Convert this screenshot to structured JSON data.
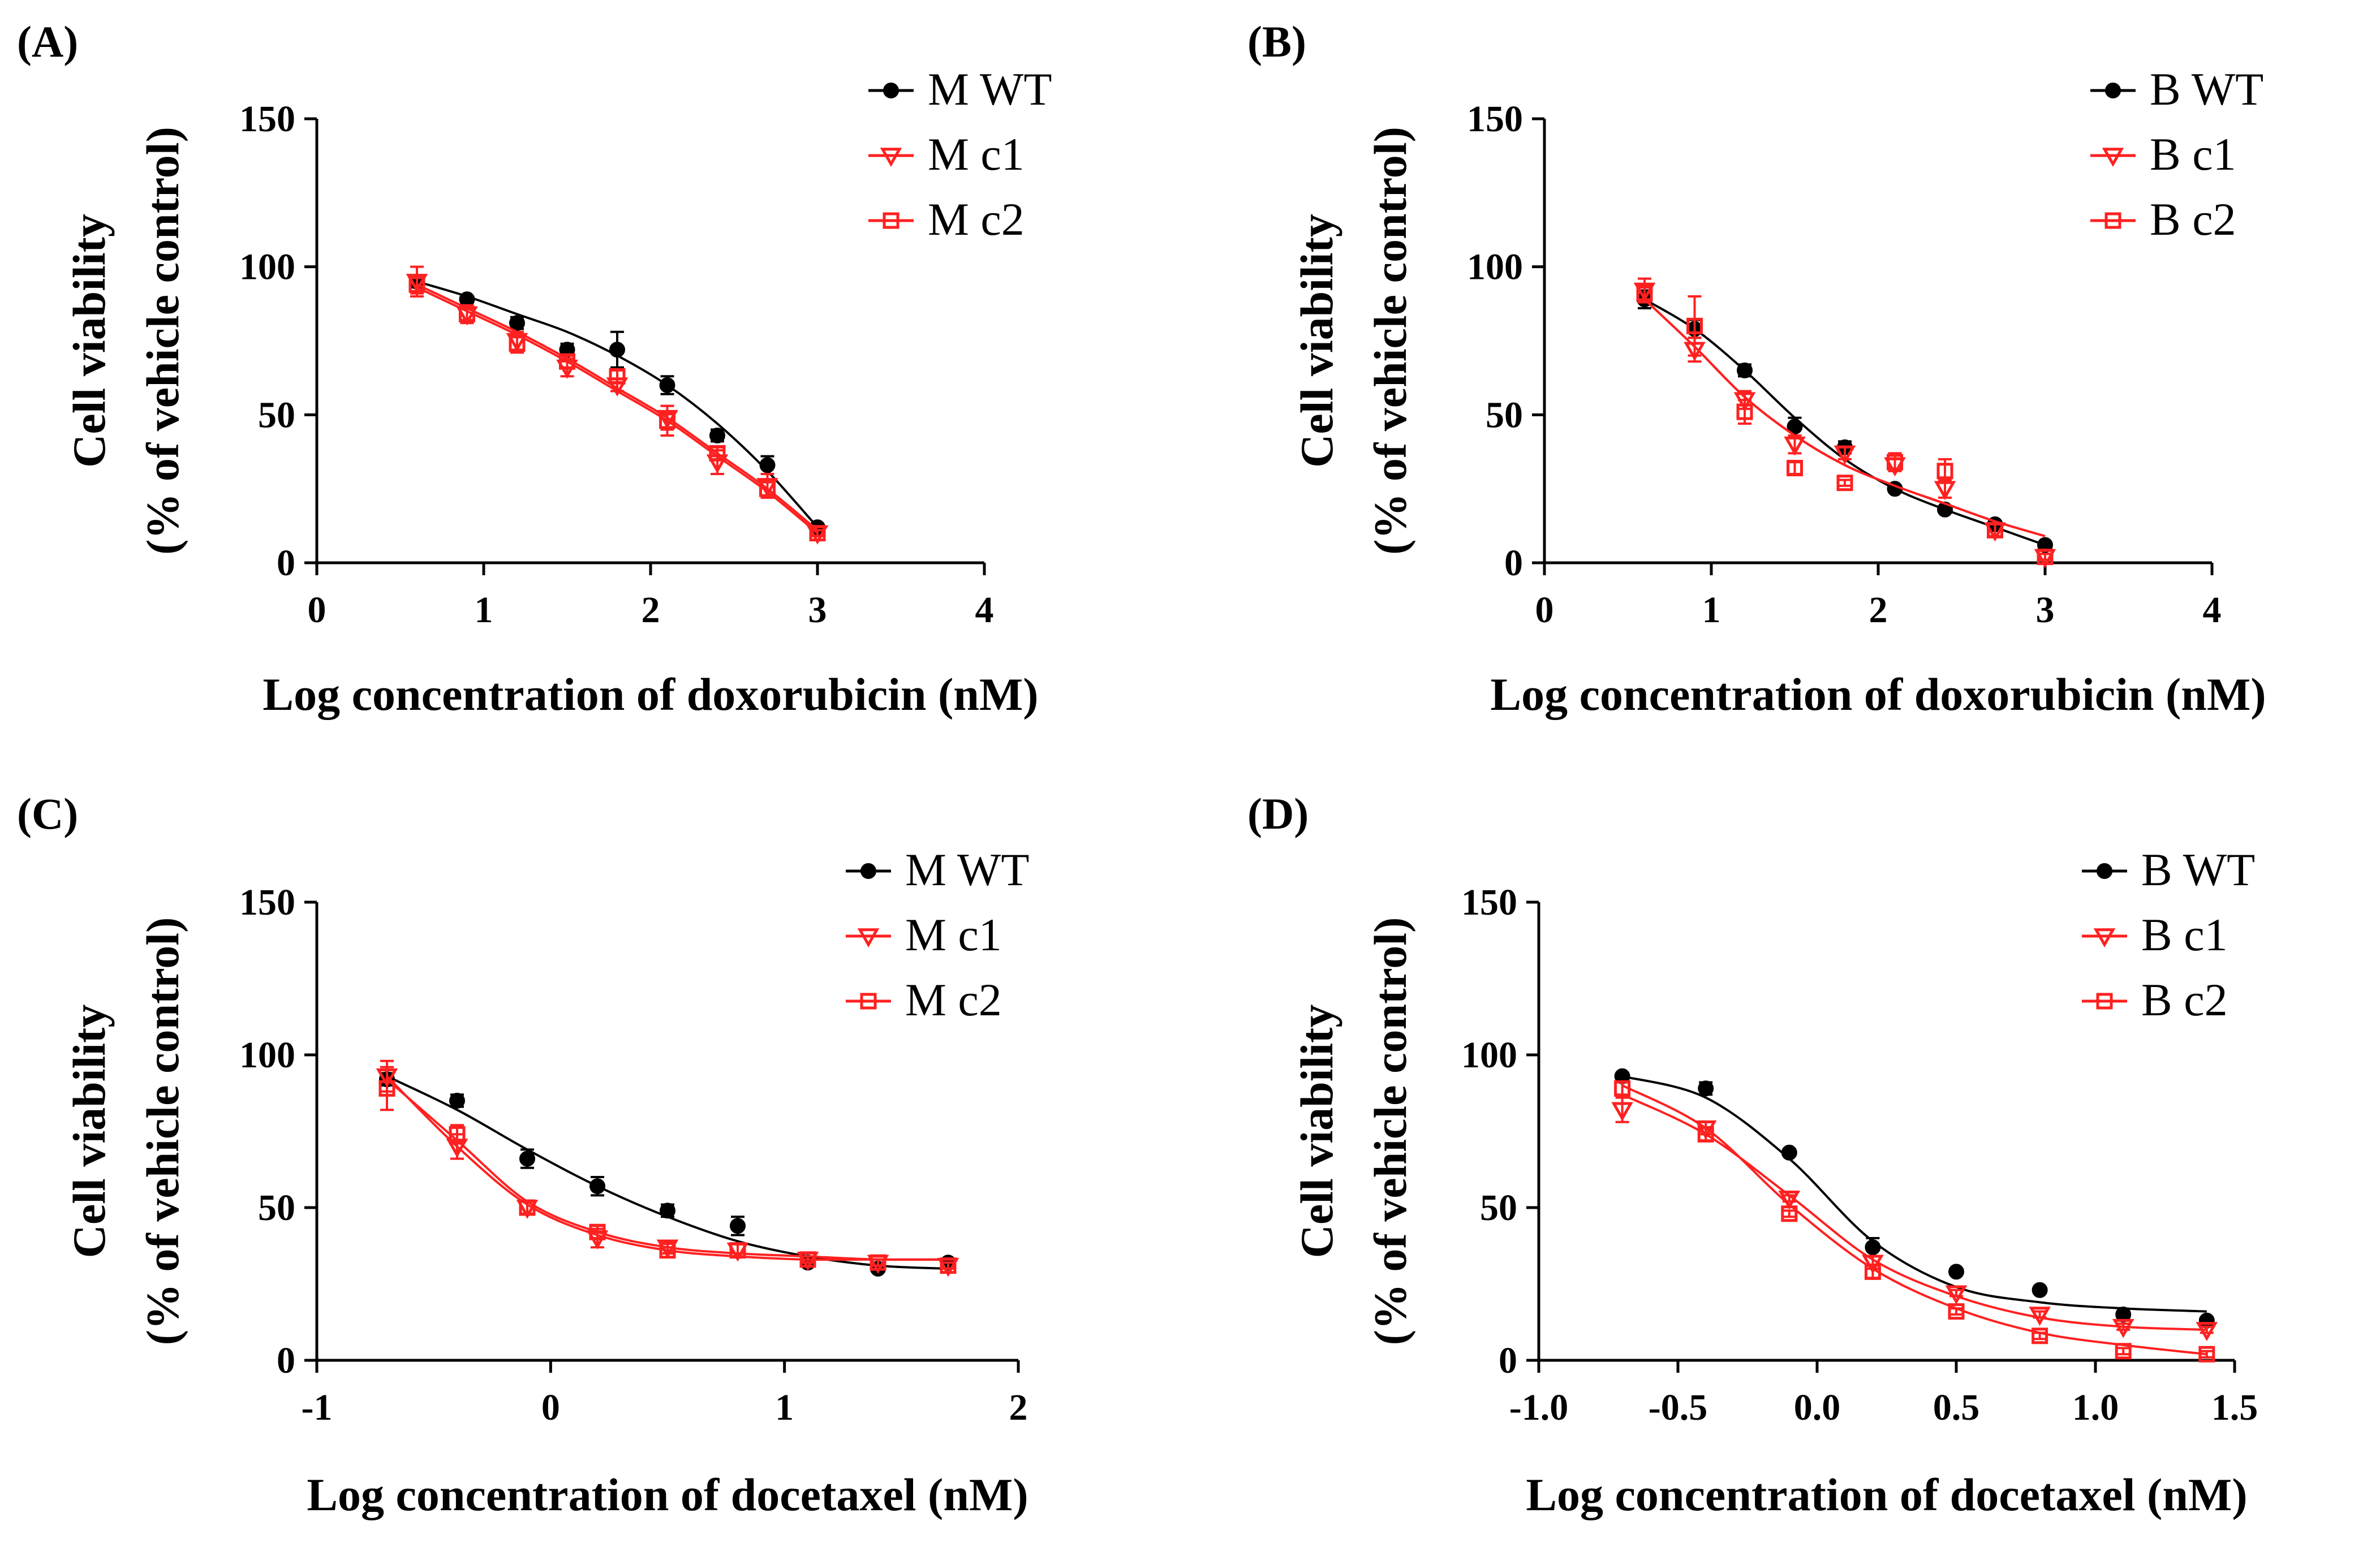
{
  "colors": {
    "wt": "#000000",
    "c1": "#ff2020",
    "c2": "#ff2020"
  },
  "chart_data": [
    {
      "type": "scatter",
      "panel_label": "(A)",
      "xlabel": "Log concentration of doxorubicin (nM)",
      "ylabel": [
        "Cell viability",
        "(% of vehicle control)"
      ],
      "xlim": [
        0,
        4
      ],
      "ylim": [
        0,
        150
      ],
      "xticks": [
        0,
        1,
        2,
        3,
        4
      ],
      "xtick_labels": [
        "0",
        "1",
        "2",
        "3",
        "4"
      ],
      "yticks": [
        0,
        50,
        100,
        150
      ],
      "ytick_labels": [
        "0",
        "50",
        "100",
        "150"
      ],
      "legend_position": "top-right",
      "series": [
        {
          "name": "M WT",
          "marker": "circle",
          "x": [
            0.6,
            0.9,
            1.2,
            1.5,
            1.8,
            2.1,
            2.4,
            2.7,
            3.0
          ],
          "y": [
            95,
            89,
            81,
            72,
            72,
            60,
            43,
            33,
            12
          ],
          "err": [
            2,
            1,
            2,
            2,
            6,
            3,
            2,
            3,
            1
          ],
          "fit_y": [
            95,
            90,
            84,
            78,
            70,
            60,
            47,
            31,
            12
          ]
        },
        {
          "name": "M c1",
          "marker": "triangle-down",
          "x": [
            0.6,
            0.9,
            1.2,
            1.5,
            1.8,
            2.1,
            2.4,
            2.7,
            3.0
          ],
          "y": [
            95,
            84,
            75,
            66,
            60,
            49,
            34,
            26,
            10
          ],
          "err": [
            5,
            3,
            3,
            3,
            2,
            4,
            4,
            4,
            1
          ],
          "fit_y": [
            93,
            85,
            77,
            68,
            58,
            48,
            36,
            24,
            10
          ]
        },
        {
          "name": "M c2",
          "marker": "square",
          "x": [
            0.6,
            0.9,
            1.2,
            1.5,
            1.8,
            2.1,
            2.4,
            2.7,
            3.0
          ],
          "y": [
            94,
            84,
            74,
            68,
            63,
            48,
            37,
            25,
            10
          ],
          "err": [
            3,
            2,
            3,
            2,
            2,
            5,
            2,
            3,
            1
          ],
          "fit_y": [
            94,
            86,
            78,
            69,
            59,
            49,
            37,
            25,
            11
          ]
        }
      ]
    },
    {
      "type": "scatter",
      "panel_label": "(B)",
      "xlabel": "Log concentration of doxorubicin (nM)",
      "ylabel": [
        "Cell viability",
        "(% of vehicle control)"
      ],
      "xlim": [
        0,
        4
      ],
      "ylim": [
        0,
        150
      ],
      "xticks": [
        0,
        1,
        2,
        3,
        4
      ],
      "xtick_labels": [
        "0",
        "1",
        "2",
        "3",
        "4"
      ],
      "yticks": [
        0,
        50,
        100,
        150
      ],
      "ytick_labels": [
        "0",
        "50",
        "100",
        "150"
      ],
      "legend_position": "top-right",
      "series": [
        {
          "name": "B WT",
          "marker": "circle",
          "x": [
            0.6,
            0.9,
            1.2,
            1.5,
            1.8,
            2.1,
            2.4,
            2.7,
            3.0
          ],
          "y": [
            89,
            79,
            65,
            46,
            39,
            25,
            18,
            13,
            6
          ],
          "err": [
            3,
            3,
            2,
            3,
            2,
            1,
            1,
            1,
            1
          ],
          "fit_y": [
            89,
            79,
            65,
            49,
            35,
            25,
            18,
            12,
            6
          ]
        },
        {
          "name": "B c1",
          "marker": "triangle-down",
          "x": [
            0.6,
            0.9,
            1.2,
            1.5,
            1.8,
            2.1,
            2.4,
            2.7,
            3.0
          ],
          "y": [
            92,
            72,
            55,
            40,
            37,
            33,
            25,
            11,
            2
          ],
          "err": [
            4,
            4,
            3,
            3,
            2,
            2,
            3,
            2,
            1
          ],
          "fit_y": [
            89,
            73,
            56,
            43,
            33,
            26,
            20,
            14,
            9
          ]
        },
        {
          "name": "B c2",
          "marker": "square",
          "x": [
            0.6,
            0.9,
            1.2,
            1.5,
            1.8,
            2.1,
            2.4,
            2.7,
            3.0
          ],
          "y": [
            91,
            80,
            51,
            32,
            27,
            34,
            31,
            11,
            2
          ],
          "err": [
            2,
            10,
            4,
            2,
            1,
            3,
            4,
            2,
            1
          ],
          "fit_y": [
            89,
            73,
            56,
            43,
            33,
            26,
            20,
            14,
            9
          ]
        }
      ]
    },
    {
      "type": "scatter",
      "panel_label": "(C)",
      "xlabel": "Log concentration of docetaxel (nM)",
      "ylabel": [
        "Cell viability",
        "(% of vehicle control)"
      ],
      "xlim": [
        -1,
        2
      ],
      "ylim": [
        0,
        150
      ],
      "xticks": [
        -1,
        0,
        1,
        2
      ],
      "xtick_labels": [
        "-1",
        "0",
        "1",
        "2"
      ],
      "yticks": [
        0,
        50,
        100,
        150
      ],
      "ytick_labels": [
        "0",
        "50",
        "100",
        "150"
      ],
      "legend_position": "top-right",
      "series": [
        {
          "name": "M WT",
          "marker": "circle",
          "x": [
            -0.7,
            -0.4,
            -0.1,
            0.2,
            0.5,
            0.8,
            1.1,
            1.4,
            1.7
          ],
          "y": [
            92,
            85,
            66,
            57,
            49,
            44,
            32,
            30,
            32
          ],
          "err": [
            2,
            2,
            3,
            3,
            2,
            3,
            1,
            1,
            1
          ],
          "fit_y": [
            93,
            82,
            69,
            57,
            47,
            39,
            34,
            31,
            30
          ]
        },
        {
          "name": "M c1",
          "marker": "triangle-down",
          "x": [
            -0.7,
            -0.4,
            -0.1,
            0.2,
            0.5,
            0.8,
            1.1,
            1.4,
            1.7
          ],
          "y": [
            93,
            70,
            50,
            40,
            37,
            36,
            33,
            32,
            31
          ],
          "err": [
            5,
            4,
            2,
            3,
            2,
            2,
            1,
            1,
            1
          ],
          "fit_y": [
            93,
            70,
            51,
            41,
            36,
            34,
            33,
            33,
            33
          ]
        },
        {
          "name": "M c2",
          "marker": "square",
          "x": [
            -0.7,
            -0.4,
            -0.1,
            0.2,
            0.5,
            0.8,
            1.1,
            1.4,
            1.7
          ],
          "y": [
            89,
            74,
            50,
            42,
            36,
            36,
            33,
            32,
            31
          ],
          "err": [
            7,
            3,
            2,
            2,
            1,
            2,
            1,
            1,
            1
          ],
          "fit_y": [
            92,
            72,
            52,
            42,
            37,
            35,
            34,
            33,
            33
          ]
        }
      ]
    },
    {
      "type": "scatter",
      "panel_label": "(D)",
      "xlabel": "Log concentration of docetaxel (nM)",
      "ylabel": [
        "Cell viability",
        "(% of vehicle control)"
      ],
      "xlim": [
        -1,
        1.5
      ],
      "ylim": [
        0,
        150
      ],
      "xticks": [
        -1,
        -0.5,
        0,
        0.5,
        1,
        1.5
      ],
      "xtick_labels": [
        "-1.0",
        "-0.5",
        "0.0",
        "0.5",
        "1.0",
        "1.5"
      ],
      "yticks": [
        0,
        50,
        100,
        150
      ],
      "ytick_labels": [
        "0",
        "50",
        "100",
        "150"
      ],
      "legend_position": "top-right",
      "series": [
        {
          "name": "B WT",
          "marker": "circle",
          "x": [
            -0.7,
            -0.4,
            -0.1,
            0.2,
            0.5,
            0.8,
            1.1,
            1.4
          ],
          "y": [
            93,
            89,
            68,
            37,
            29,
            23,
            15,
            13
          ],
          "err": [
            1,
            2,
            1,
            3,
            1,
            1,
            1,
            1
          ],
          "fit_y": [
            93,
            86,
            66,
            39,
            24,
            19,
            17,
            16
          ]
        },
        {
          "name": "B c1",
          "marker": "triangle-down",
          "x": [
            -0.7,
            -0.4,
            -0.1,
            0.2,
            0.5,
            0.8,
            1.1,
            1.4
          ],
          "y": [
            82,
            76,
            53,
            32,
            22,
            15,
            11,
            10
          ],
          "err": [
            4,
            2,
            1,
            2,
            1,
            1,
            1,
            1
          ],
          "fit_y": [
            87,
            74,
            54,
            33,
            21,
            14,
            11,
            10
          ]
        },
        {
          "name": "B c2",
          "marker": "square",
          "x": [
            -0.7,
            -0.4,
            -0.1,
            0.2,
            0.5,
            0.8,
            1.1,
            1.4
          ],
          "y": [
            89,
            74,
            48,
            29,
            16,
            8,
            3,
            2
          ],
          "err": [
            2,
            2,
            1,
            2,
            1,
            1,
            1,
            1
          ],
          "fit_y": [
            90,
            76,
            51,
            30,
            17,
            9,
            5,
            2
          ]
        }
      ]
    }
  ]
}
